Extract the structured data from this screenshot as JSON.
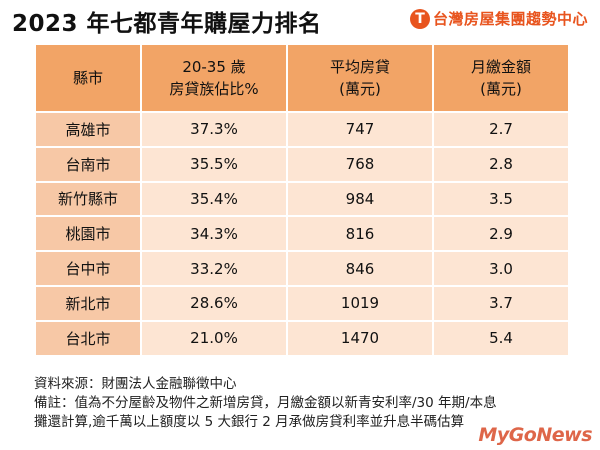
{
  "title": "2023 年七都青年購屋力排名",
  "brand": {
    "logo_char": "T",
    "name": "台灣房屋集團趨勢中心"
  },
  "chart_data": {
    "type": "table",
    "columns": [
      [
        "縣市"
      ],
      [
        "20-35 歲",
        "房貸族佔比%"
      ],
      [
        "平均房貸",
        "(萬元)"
      ],
      [
        "月繳金額",
        "(萬元)"
      ]
    ],
    "rows": [
      [
        "高雄市",
        "37.3%",
        "747",
        "2.7"
      ],
      [
        "台南市",
        "35.5%",
        "768",
        "2.8"
      ],
      [
        "新竹縣市",
        "35.4%",
        "984",
        "3.5"
      ],
      [
        "桃園市",
        "34.3%",
        "816",
        "2.9"
      ],
      [
        "台中市",
        "33.2%",
        "846",
        "3.0"
      ],
      [
        "新北市",
        "28.6%",
        "1019",
        "3.7"
      ],
      [
        "台北市",
        "21.0%",
        "1470",
        "5.4"
      ]
    ]
  },
  "footer": {
    "source": "資料來源：財團法人金融聯徵中心",
    "note_line1": "備註：值為不分屋齡及物件之新增房貸，月繳金額以新青安利率/30 年期/本息",
    "note_line2": "攤還計算,逾千萬以上額度以 5 大銀行 2 月承做房貸利率並升息半碼估算"
  },
  "watermark": "MyGoNews",
  "colors": {
    "header": "#f2a466",
    "city_cell": "#f7c8a6",
    "value_cell": "#fde5d3",
    "brand": "#e8541e"
  }
}
